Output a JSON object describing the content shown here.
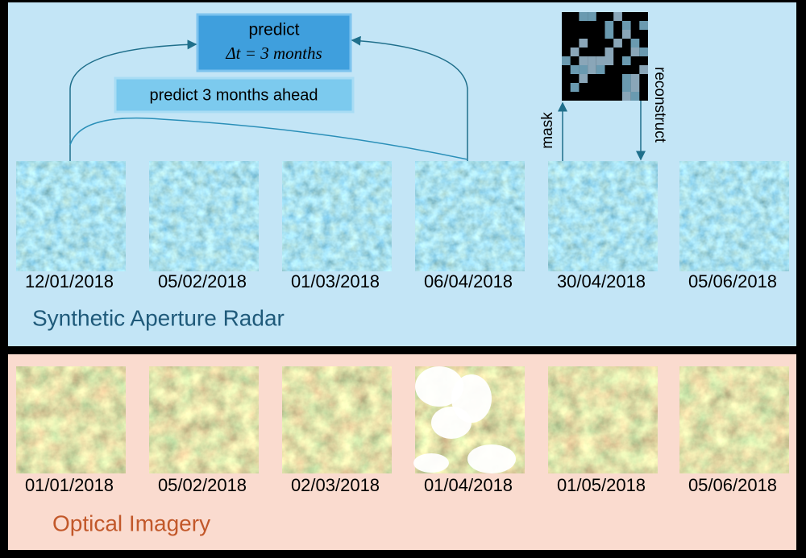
{
  "sar": {
    "label": "Synthetic Aperture Radar",
    "dates": [
      "12/01/2018",
      "05/02/2018",
      "01/03/2018",
      "06/04/2018",
      "30/04/2018",
      "05/06/2018"
    ]
  },
  "optical": {
    "label": "Optical Imagery",
    "dates": [
      "01/01/2018",
      "05/02/2018",
      "02/03/2018",
      "01/04/2018",
      "01/05/2018",
      "05/06/2018"
    ]
  },
  "annotations": {
    "predict": "predict",
    "delta": "Δt = 3 months",
    "predict_ahead": "predict 3 months ahead",
    "mask": "mask",
    "reconstruct": "reconstruct"
  }
}
